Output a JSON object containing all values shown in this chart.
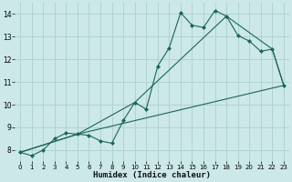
{
  "title": "",
  "xlabel": "Humidex (Indice chaleur)",
  "background_color": "#cce8e8",
  "grid_color": "#b0d4d0",
  "line_color": "#1a6655",
  "xlim": [
    -0.5,
    23.5
  ],
  "ylim": [
    7.5,
    14.5
  ],
  "xticks": [
    0,
    1,
    2,
    3,
    4,
    5,
    6,
    7,
    8,
    9,
    10,
    11,
    12,
    13,
    14,
    15,
    16,
    17,
    18,
    19,
    20,
    21,
    22,
    23
  ],
  "yticks": [
    8,
    9,
    10,
    11,
    12,
    13,
    14
  ],
  "series1_x": [
    0,
    1,
    2,
    3,
    4,
    5,
    6,
    7,
    8,
    9,
    10,
    11,
    12,
    13,
    14,
    15,
    16,
    17,
    18,
    19,
    20,
    21,
    22,
    23
  ],
  "series1_y": [
    7.9,
    7.75,
    8.0,
    8.5,
    8.75,
    8.7,
    8.65,
    8.4,
    8.3,
    9.3,
    10.1,
    9.8,
    11.7,
    12.5,
    14.05,
    13.5,
    13.4,
    14.15,
    13.9,
    13.05,
    12.8,
    12.35,
    12.45,
    10.85
  ],
  "series2_x": [
    0,
    5,
    23
  ],
  "series2_y": [
    7.9,
    8.7,
    10.85
  ],
  "series3_x": [
    0,
    5,
    10,
    18,
    22,
    23
  ],
  "series3_y": [
    7.9,
    8.7,
    10.1,
    13.9,
    12.45,
    10.85
  ]
}
